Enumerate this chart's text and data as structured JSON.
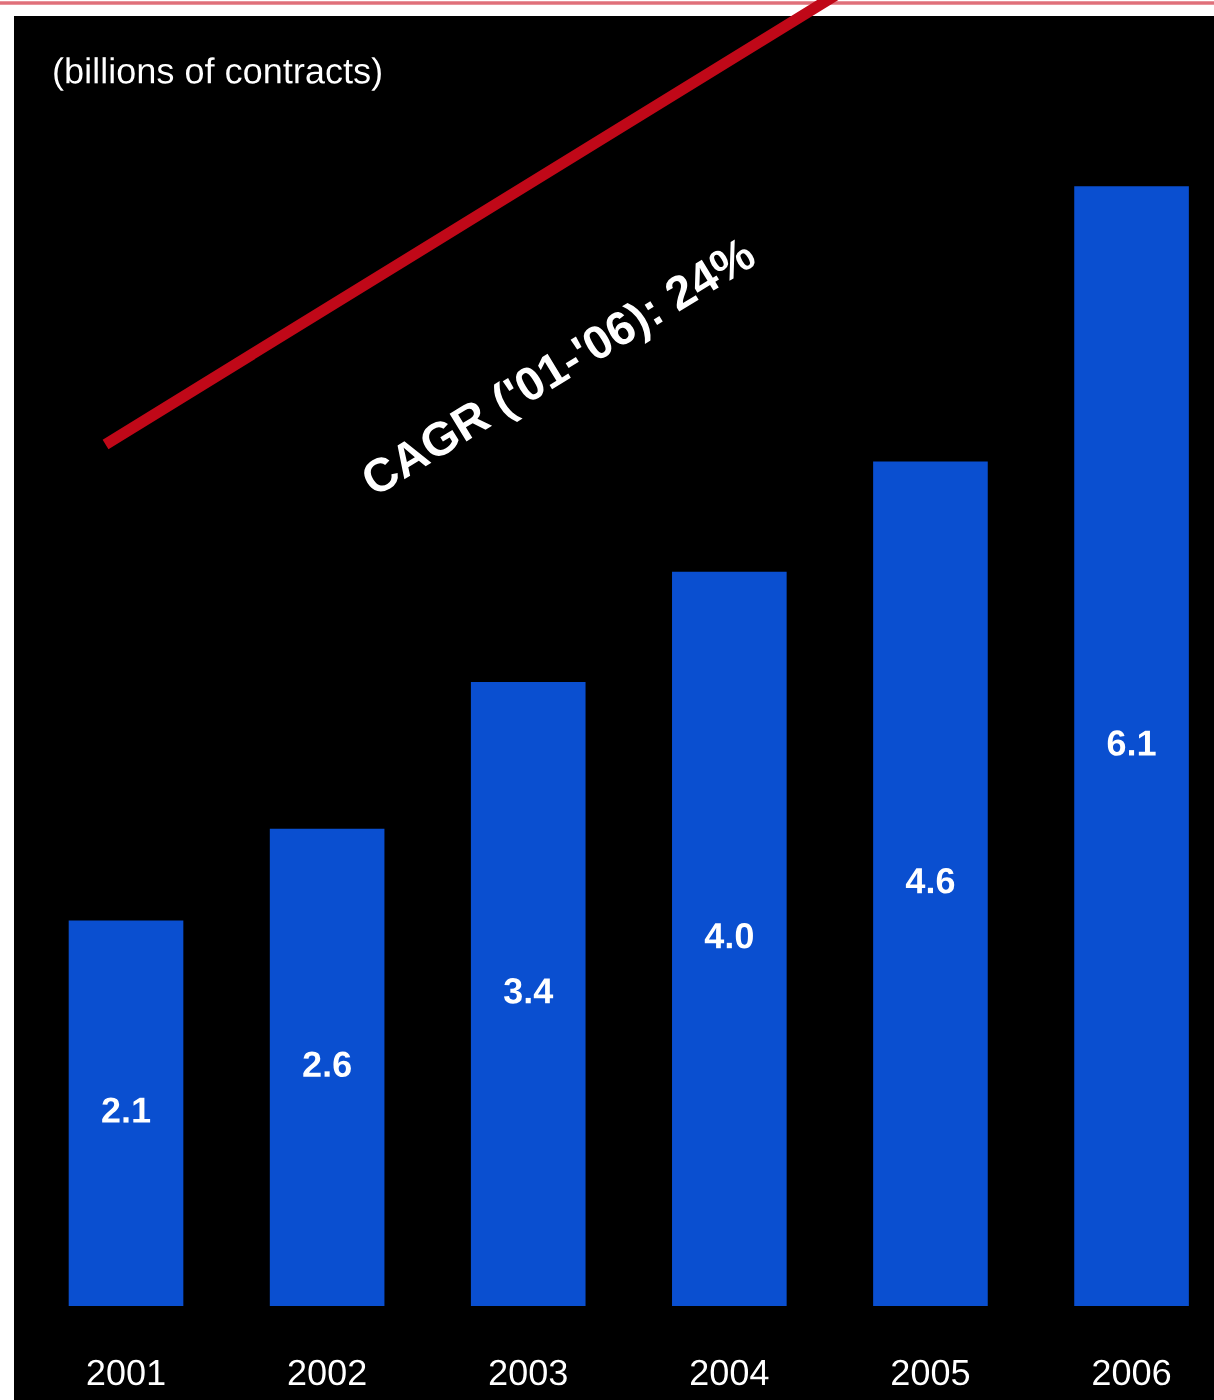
{
  "chart_data": {
    "type": "bar",
    "ylabel": "(billions of contracts)",
    "categories": [
      "2001",
      "2002",
      "2003",
      "2004",
      "2005",
      "2006"
    ],
    "values": [
      2.1,
      2.6,
      3.4,
      4.0,
      4.6,
      6.1
    ],
    "color": "#0a4fd0",
    "value_labels": [
      "2.1",
      "2.6",
      "3.4",
      "4.0",
      "4.6",
      "6.1"
    ],
    "annotations": [
      "CAGR ('01-'06): 24%"
    ]
  }
}
